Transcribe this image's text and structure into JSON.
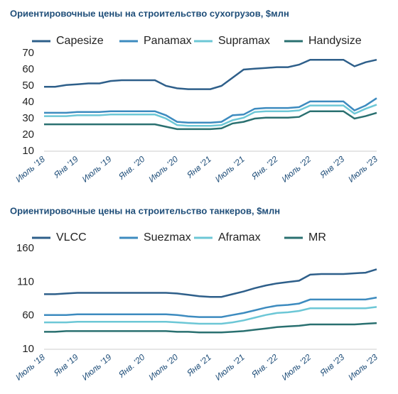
{
  "chart_data": [
    {
      "type": "line",
      "title": "Ориентировочные цены на строительство сухогрузов, $млн",
      "categories": [
        "Июль '18",
        null,
        null,
        "Янв '19",
        null,
        null,
        "Июль '19",
        null,
        null,
        "Янв. '20",
        null,
        null,
        "Июль '20",
        null,
        null,
        "Янв '21",
        null,
        null,
        "Июль '21",
        null,
        null,
        "Янв. '22",
        null,
        null,
        "Июль '22",
        null,
        null,
        "Янв '23",
        null,
        null,
        "Июль '23"
      ],
      "ylim": [
        10,
        70
      ],
      "yticks": [
        10,
        20,
        30,
        40,
        50,
        60,
        70
      ],
      "grid": false,
      "legend": "top",
      "series": [
        {
          "name": "Capesize",
          "color": "#2e5f8a",
          "values": [
            49.5,
            49.5,
            50.5,
            51,
            51.5,
            51.5,
            53,
            53.5,
            53.5,
            53.5,
            53.5,
            50,
            48.5,
            48,
            48,
            48,
            50,
            55,
            60,
            60.5,
            61,
            61.5,
            61.5,
            63,
            66,
            66,
            66,
            66,
            62,
            64.5,
            66
          ]
        },
        {
          "name": "Panamax",
          "color": "#3d8bbf",
          "values": [
            33.5,
            33.5,
            33.5,
            34,
            34,
            34,
            34.5,
            34.5,
            34.5,
            34.5,
            34.5,
            32,
            28,
            27.5,
            27.5,
            27.5,
            28,
            32,
            32.5,
            36,
            36.5,
            36.5,
            36.5,
            37,
            40.5,
            40.5,
            40.5,
            40.5,
            35,
            38,
            42.5
          ]
        },
        {
          "name": "Supramax",
          "color": "#6cc7d6",
          "values": [
            31.5,
            31.5,
            31.5,
            32,
            32,
            32,
            32.5,
            32.5,
            32.5,
            32.5,
            32.5,
            30,
            26,
            25.5,
            25.5,
            25.5,
            26,
            29,
            30.5,
            34,
            34.5,
            34.5,
            34.5,
            35,
            38,
            38,
            38,
            38,
            33,
            36,
            38.5
          ]
        },
        {
          "name": "Handysize",
          "color": "#2a7070",
          "values": [
            26.5,
            26.5,
            26.5,
            26.5,
            26.5,
            26.5,
            26.5,
            26.5,
            26.5,
            26.5,
            26.5,
            25,
            23.5,
            23.5,
            23.5,
            23.5,
            24,
            27,
            28,
            30,
            30.5,
            30.5,
            30.5,
            31,
            34.5,
            34.5,
            34.5,
            34.5,
            30,
            31.5,
            33.5
          ]
        }
      ]
    },
    {
      "type": "line",
      "title": "Ориентировочные цены на строительство танкеров, $млн",
      "categories": [
        "Июль '18",
        null,
        null,
        "Янв '19",
        null,
        null,
        "Июль '19",
        null,
        null,
        "Янв. '20",
        null,
        null,
        "Июль '20",
        null,
        null,
        "Янв '21",
        null,
        null,
        "Июль '21",
        null,
        null,
        "Янв. '22",
        null,
        null,
        "Июль '22",
        null,
        null,
        "Янв '23",
        null,
        null,
        "Июль '23"
      ],
      "ylim": [
        10,
        160
      ],
      "yticks": [
        10,
        60,
        110,
        160
      ],
      "grid": false,
      "legend": "top",
      "series": [
        {
          "name": "VLCC",
          "color": "#2e5f8a",
          "values": [
            92,
            92,
            93,
            94,
            94,
            94,
            94,
            94,
            94,
            94,
            94,
            94,
            93,
            91,
            89,
            88,
            88,
            92,
            96,
            101,
            105,
            108,
            110,
            112,
            121,
            122,
            122,
            122,
            123,
            124,
            129
          ]
        },
        {
          "name": "Suezmax",
          "color": "#3d8bbf",
          "values": [
            61,
            61,
            61,
            62,
            62,
            62,
            62,
            62,
            62,
            62,
            62,
            62,
            61,
            59,
            58,
            58,
            58,
            61,
            64,
            68,
            72,
            75,
            76,
            78,
            84,
            84,
            84,
            84,
            84,
            84,
            87
          ]
        },
        {
          "name": "Aframax",
          "color": "#6cc7d6",
          "values": [
            50,
            50,
            50,
            51,
            51,
            51,
            51,
            51,
            51,
            51,
            51,
            51,
            50,
            49,
            48,
            48,
            48,
            50,
            53,
            57,
            61,
            64,
            65,
            67,
            71,
            71,
            71,
            71,
            71,
            71,
            73
          ]
        },
        {
          "name": "MR",
          "color": "#2a7070",
          "values": [
            36,
            36,
            37,
            37,
            37,
            37,
            37,
            37,
            37,
            37,
            37,
            37,
            36,
            36,
            35,
            35,
            35,
            36,
            37,
            39,
            41,
            43,
            44,
            45,
            47,
            47,
            47,
            47,
            47,
            48,
            49
          ]
        }
      ]
    }
  ]
}
